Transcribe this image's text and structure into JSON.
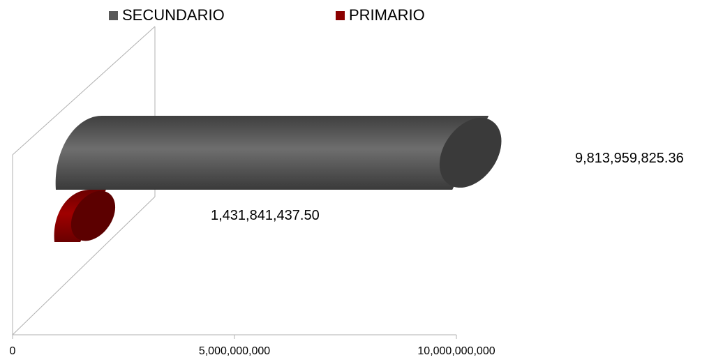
{
  "chart_data": {
    "type": "bar",
    "orientation": "horizontal",
    "style": "3d-cylinder",
    "series": [
      {
        "name": "SECUNDARIO",
        "value": 9813959825.36,
        "label": "9,813,959,825.36",
        "color": "#595959"
      },
      {
        "name": "PRIMARIO",
        "value": 1431841437.5,
        "label": "1,431,841,437.50",
        "color": "#8b0000"
      }
    ],
    "x_ticks": [
      {
        "value": 0,
        "label": "0"
      },
      {
        "value": 5000000000,
        "label": "5,000,000,000"
      },
      {
        "value": 10000000000,
        "label": "10,000,000,000"
      }
    ],
    "xlim": [
      0,
      10000000000
    ],
    "legend_position": "top",
    "grid": false
  }
}
